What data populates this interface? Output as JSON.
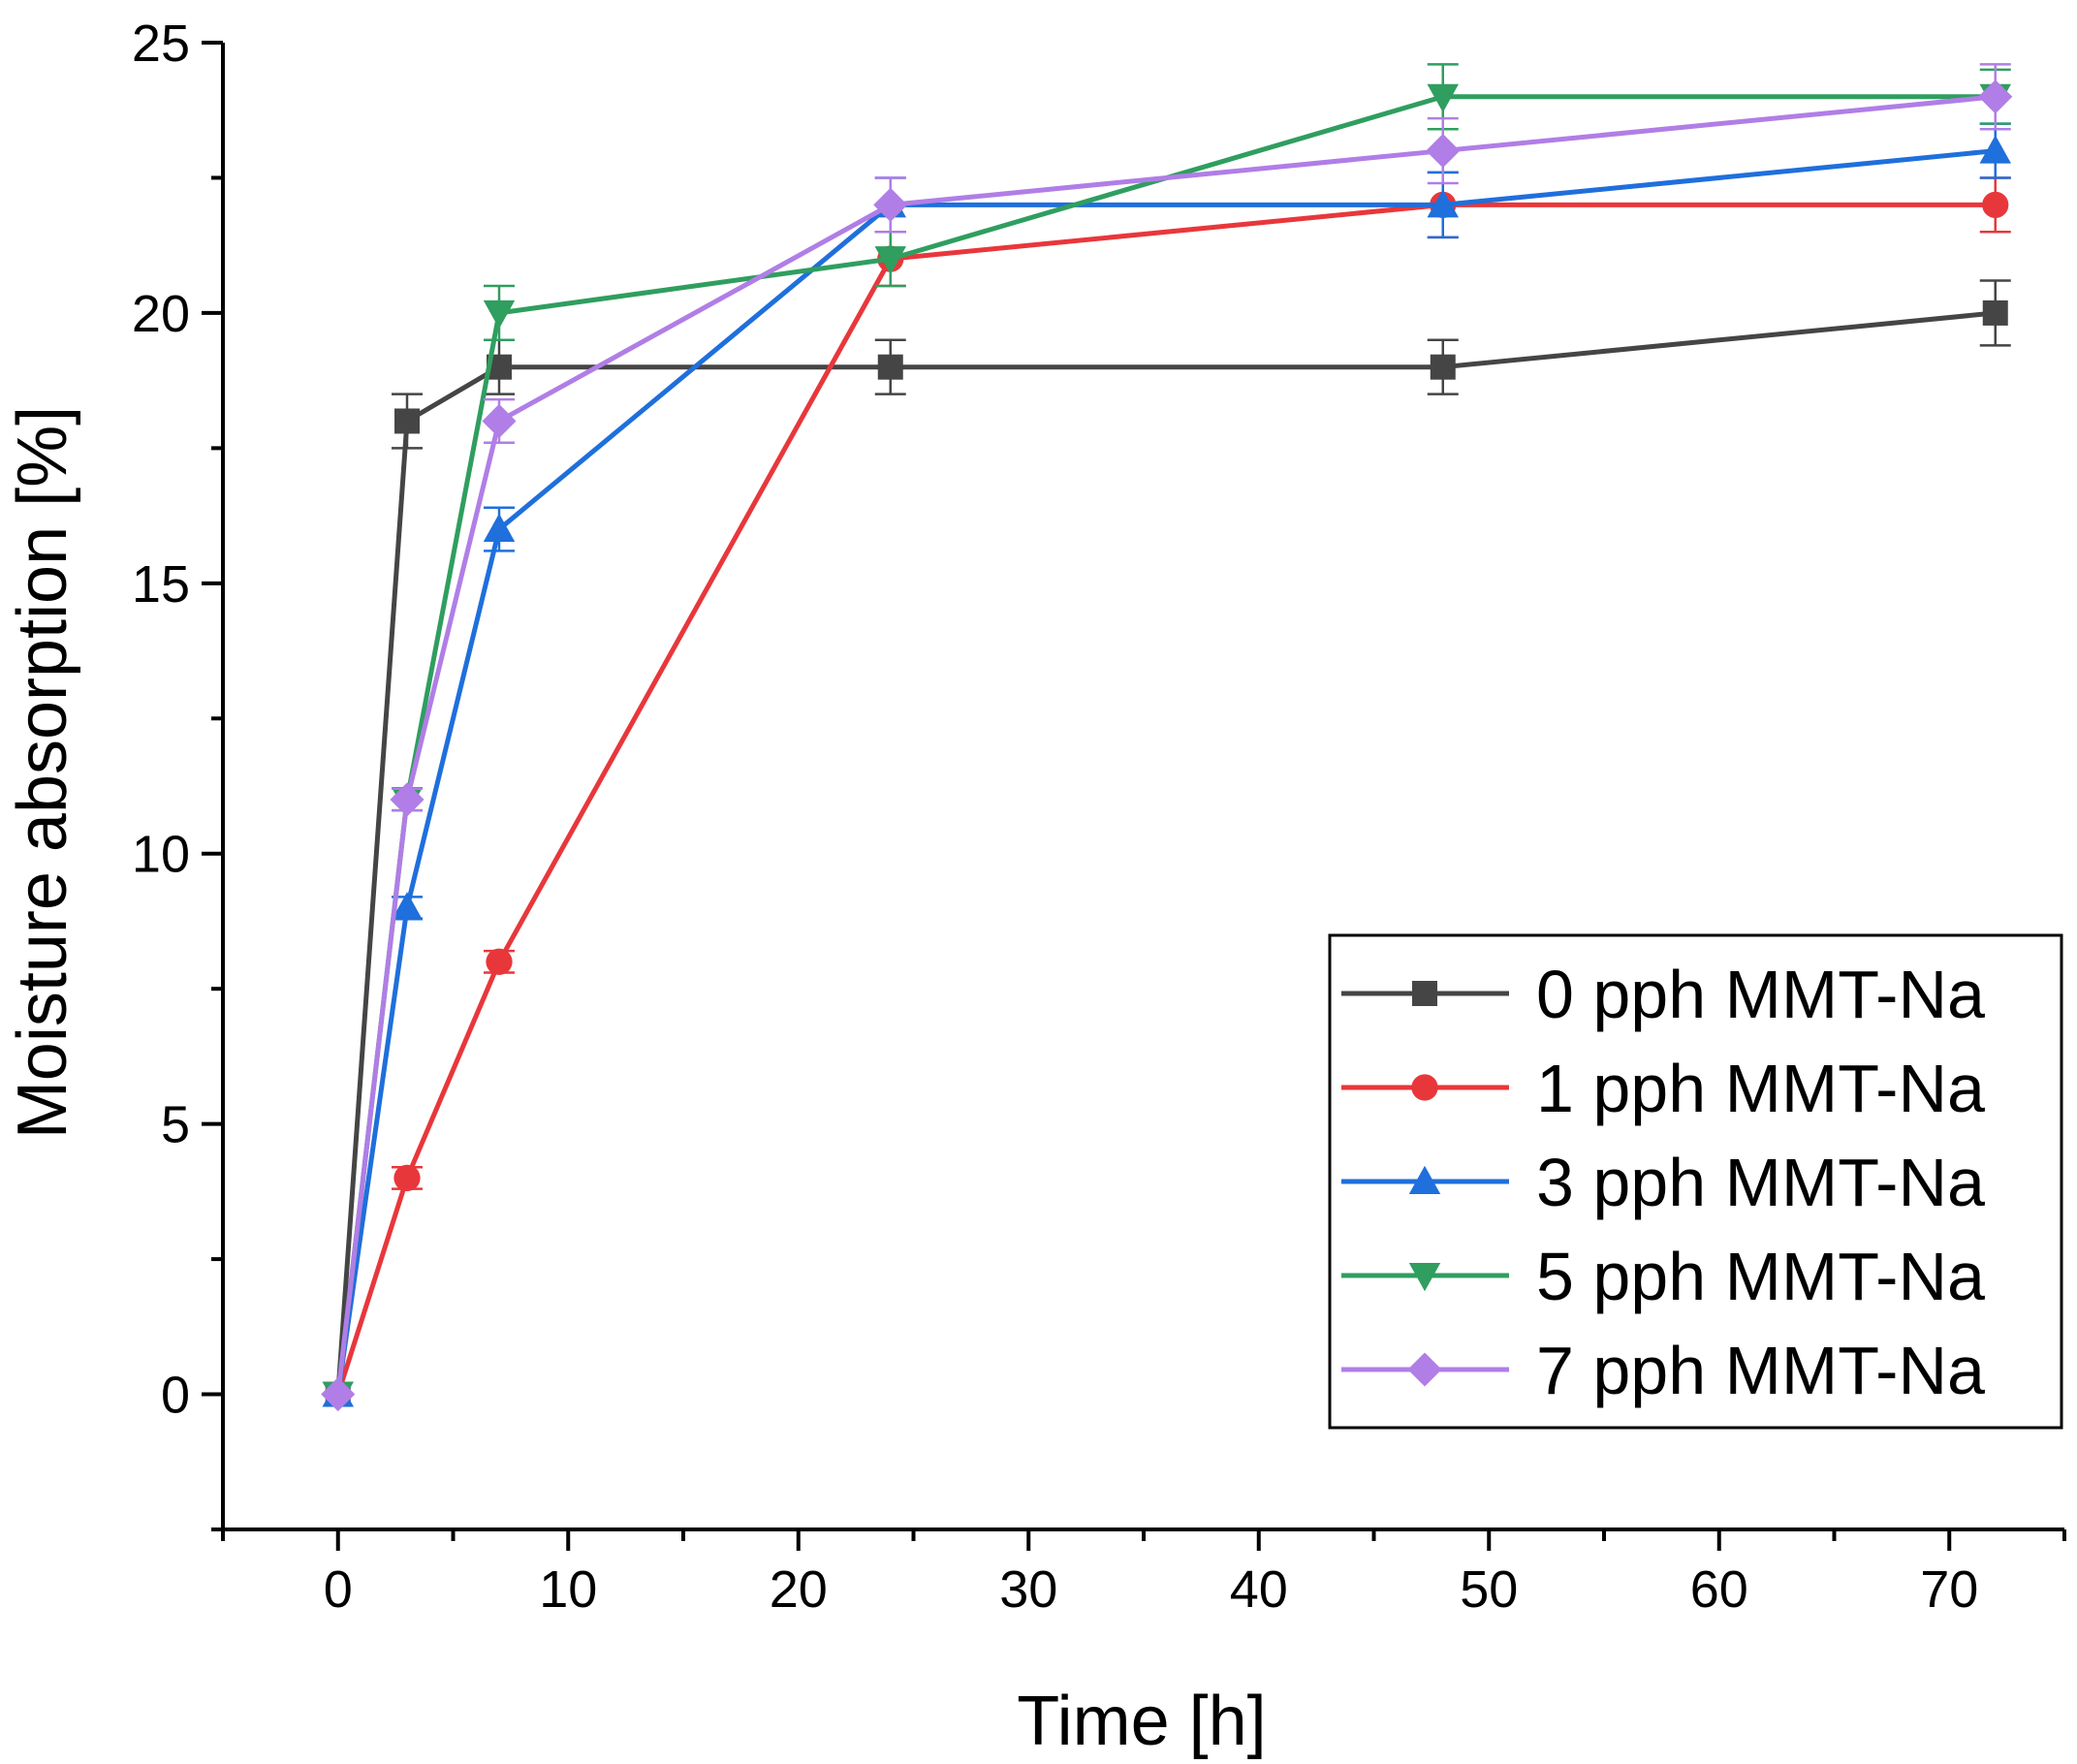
{
  "chart_data": {
    "type": "line",
    "title": "",
    "xlabel": "Time [h]",
    "ylabel": "Moisture absorption [%]",
    "xlim": [
      -5,
      75
    ],
    "ylim": [
      -2.5,
      25
    ],
    "xticks": [
      0,
      10,
      20,
      30,
      40,
      50,
      60,
      70
    ],
    "yticks": [
      0,
      5,
      10,
      15,
      20,
      25
    ],
    "legend_position": "bottom-right",
    "x": [
      0,
      3,
      7,
      24,
      48,
      72
    ],
    "series": [
      {
        "name": "0 pph MMT-Na",
        "color": "#454545",
        "marker": "square",
        "values": [
          0,
          18,
          19,
          19,
          19,
          20
        ],
        "errors": [
          0,
          0.5,
          0.5,
          0.5,
          0.5,
          0.6
        ]
      },
      {
        "name": "1 pph MMT-Na",
        "color": "#e8373b",
        "marker": "circle",
        "values": [
          0,
          4,
          8,
          21,
          22,
          22
        ],
        "errors": [
          0,
          0.2,
          0.2,
          0.5,
          0.6,
          0.5
        ]
      },
      {
        "name": "3 pph MMT-Na",
        "color": "#1f6fdc",
        "marker": "triangle-up",
        "values": [
          0,
          9,
          16,
          22,
          22,
          23
        ],
        "errors": [
          0,
          0.2,
          0.4,
          0.5,
          0.6,
          0.5
        ]
      },
      {
        "name": "5 pph MMT-Na",
        "color": "#2f9e5f",
        "marker": "triangle-down",
        "values": [
          0,
          11,
          20,
          21,
          24,
          24
        ],
        "errors": [
          0,
          0.2,
          0.5,
          0.5,
          0.6,
          0.5
        ]
      },
      {
        "name": "7 pph MMT-Na",
        "color": "#b07ee6",
        "marker": "diamond",
        "values": [
          0,
          11,
          18,
          22,
          23,
          24
        ],
        "errors": [
          0,
          0.2,
          0.4,
          0.5,
          0.6,
          0.6
        ]
      }
    ]
  }
}
